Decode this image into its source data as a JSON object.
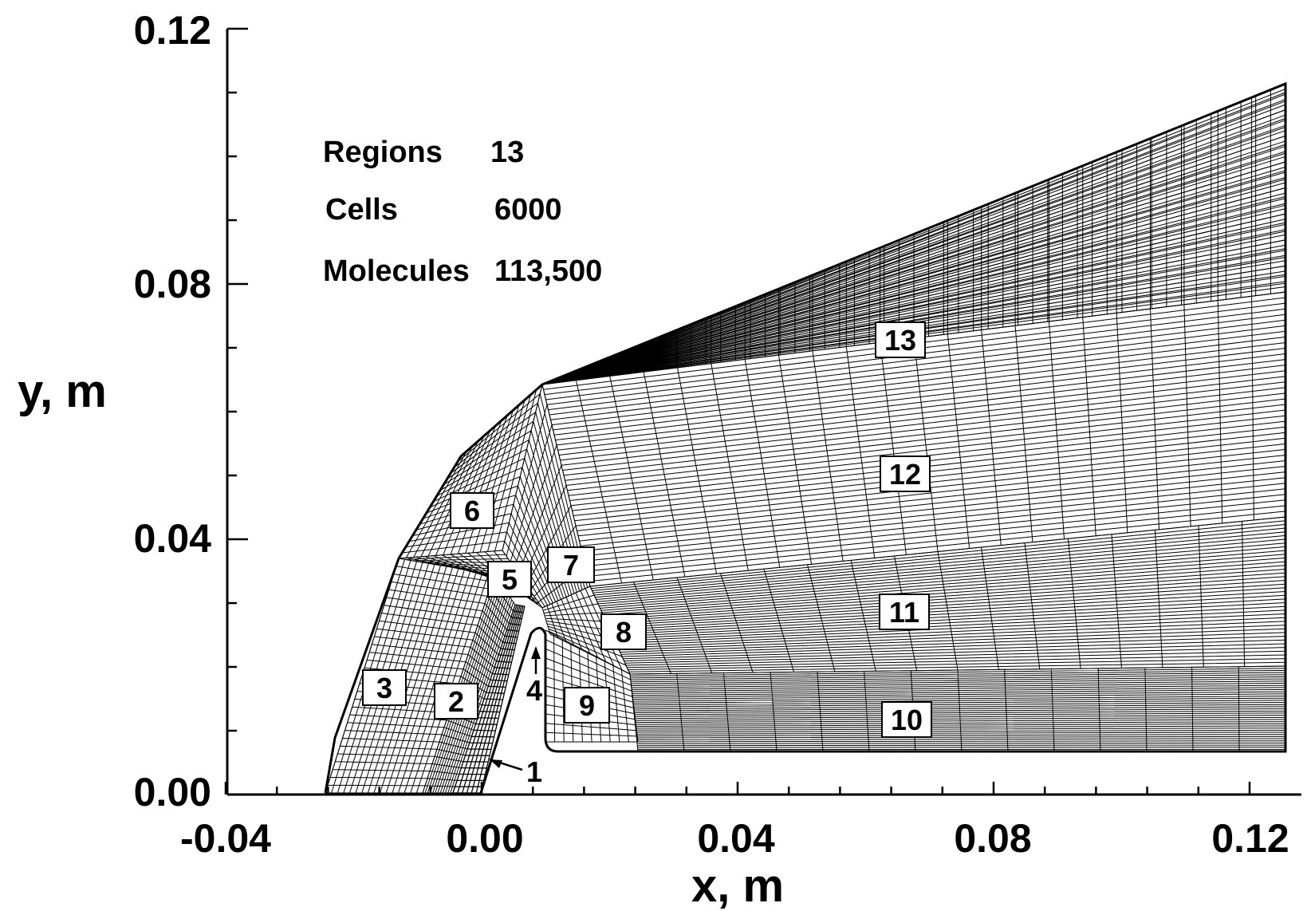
{
  "axes": {
    "x_label": "x, m",
    "y_label": "y, m",
    "x_ticks": [
      "-0.04",
      "0.00",
      "0.04",
      "0.08",
      "0.12"
    ],
    "y_ticks": [
      "0.00",
      "0.04",
      "0.08",
      "0.12"
    ],
    "xlim": [
      -0.04,
      0.12
    ],
    "ylim": [
      0.0,
      0.12
    ]
  },
  "info": {
    "regions_label": "Regions",
    "regions_value": "13",
    "cells_label": "Cells",
    "cells_value": "6000",
    "molecules_label": "Molecules",
    "molecules_value": "113,500"
  },
  "region_labels": [
    "1",
    "2",
    "3",
    "4",
    "5",
    "6",
    "7",
    "8",
    "9",
    "10",
    "11",
    "12",
    "13"
  ],
  "colors": {
    "ink": "#000000",
    "paper": "#ffffff"
  }
}
